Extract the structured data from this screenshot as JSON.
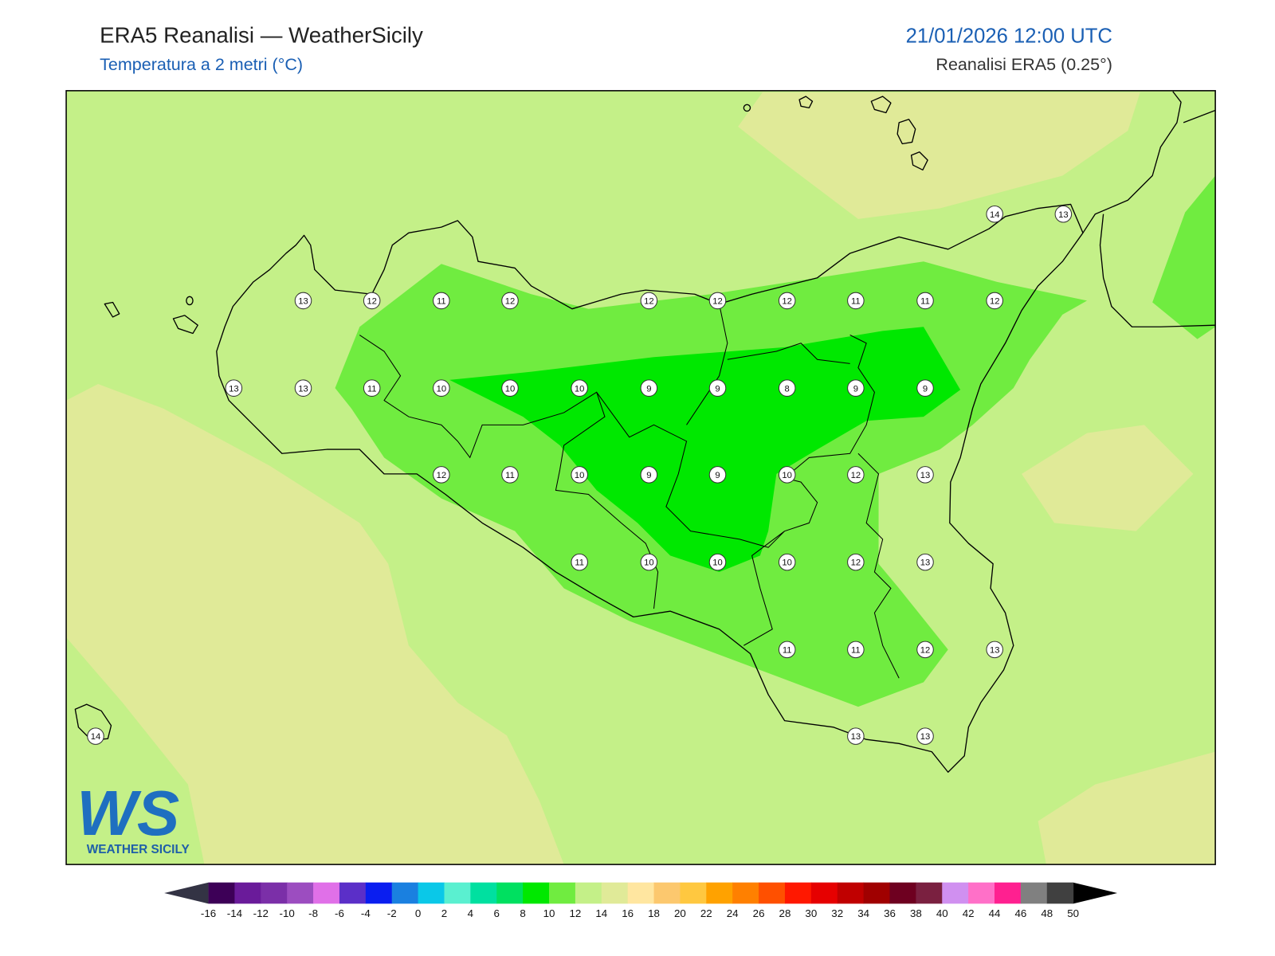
{
  "header": {
    "title": "ERA5 Reanalisi — WeatherSicily",
    "subtitle": "Temperatura a 2 metri (°C)",
    "datetime": "21/01/2026 12:00 UTC",
    "source": "Reanalisi ERA5 (0.25°)"
  },
  "stations": [
    14,
    13,
    13,
    12,
    11,
    12,
    12,
    12,
    12,
    11,
    11,
    12,
    13,
    13,
    11,
    10,
    10,
    10,
    9,
    9,
    8,
    9,
    9,
    12,
    11,
    10,
    9,
    9,
    10,
    12,
    13,
    11,
    10,
    10,
    10,
    12,
    13,
    11,
    11,
    12,
    13,
    14,
    13,
    13
  ],
  "colorbar": {
    "ticks": [
      -16,
      -14,
      -12,
      -10,
      -8,
      -6,
      -4,
      -2,
      0,
      2,
      4,
      6,
      8,
      10,
      12,
      14,
      16,
      18,
      20,
      22,
      24,
      26,
      28,
      30,
      32,
      34,
      36,
      38,
      40,
      42,
      44,
      46,
      48,
      50
    ],
    "colors": [
      "#3d0057",
      "#6a1b9a",
      "#7b2fa8",
      "#9c4dc0",
      "#e070e8",
      "#5b2fc8",
      "#0a1ef0",
      "#1a80e0",
      "#0ac8e8",
      "#5af0d0",
      "#00e0a0",
      "#00e060",
      "#00e800",
      "#70ec40",
      "#c4f088",
      "#e0ea98",
      "#ffe6a0",
      "#fcc86e",
      "#ffc840",
      "#ffa200",
      "#ff8000",
      "#ff5000",
      "#ff1800",
      "#e60000",
      "#c00000",
      "#a00000",
      "#6e0020",
      "#7a2040",
      "#d090f0",
      "#ff70c8",
      "#ff2090",
      "#808080",
      "#404040"
    ],
    "under_color": "#333344",
    "over_color": "#000000"
  },
  "logo": {
    "mark": "WS",
    "text": "WEATHER SICILY"
  }
}
